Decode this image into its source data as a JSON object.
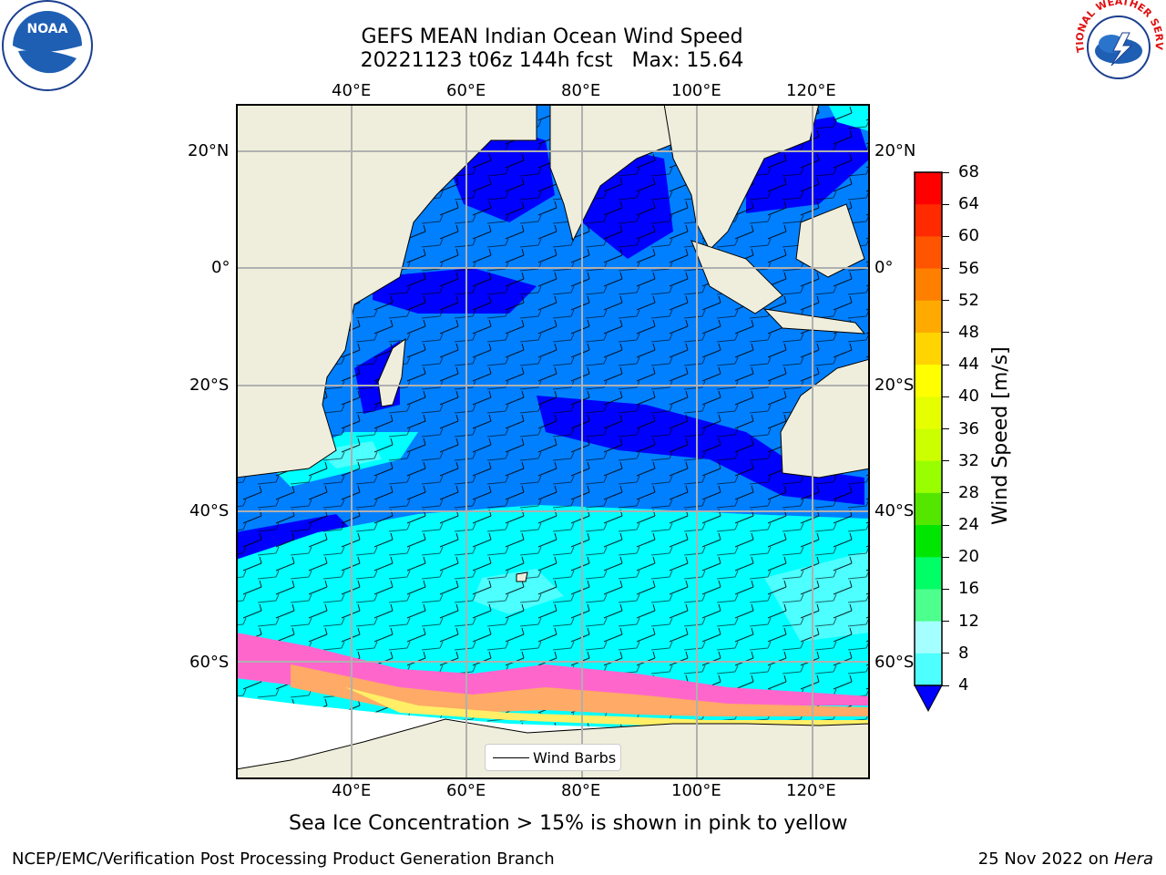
{
  "title": {
    "line1": "GEFS MEAN Indian Ocean Wind Speed",
    "line2": "20221123 t06z 144h fcst   Max: 15.64"
  },
  "map": {
    "lon_labels": [
      "40°E",
      "60°E",
      "80°E",
      "100°E",
      "120°E"
    ],
    "lat_labels": [
      "20°N",
      "0°",
      "20°S",
      "40°S",
      "60°S"
    ],
    "legend_label": "Wind Barbs",
    "land_color": "#efeedc",
    "ice_colors": [
      "#ff66cc",
      "#ffaa66",
      "#ffee66"
    ]
  },
  "colorbar": {
    "title": "Wind Speed [m/s]",
    "ticks": [
      "68",
      "64",
      "60",
      "56",
      "52",
      "48",
      "44",
      "40",
      "36",
      "32",
      "28",
      "24",
      "20",
      "16",
      "12",
      "8",
      "4"
    ],
    "colors": [
      "#ff0000",
      "#ff2a00",
      "#ff5500",
      "#ff8000",
      "#ffaa00",
      "#ffd400",
      "#ffff00",
      "#e6ff00",
      "#ccff00",
      "#99ff00",
      "#55e600",
      "#00e600",
      "#00ff66",
      "#4dff8c",
      "#a6ffff",
      "#4dffff",
      "#00ffff",
      "#0080ff",
      "#0000ff"
    ]
  },
  "note": "Sea Ice Concentration > 15% is shown in pink to yellow",
  "footer": {
    "left": "NCEP/EMC/Verification Post Processing Product Generation Branch",
    "right_date": "25 Nov 2022 on ",
    "right_machine": "Hera"
  },
  "logos": {
    "noaa": "NOAA",
    "nws": "NATIONAL WEATHER SERVICE"
  }
}
